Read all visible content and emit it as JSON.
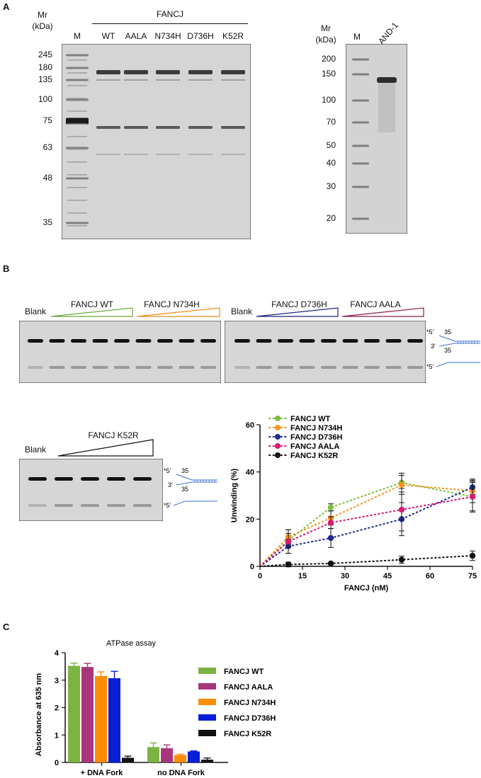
{
  "panels": {
    "a": "A",
    "b": "B",
    "c": "C"
  },
  "gel_a1": {
    "mr": "Mr",
    "kda": "(kDa)",
    "group_label": "FANCJ",
    "lanes": [
      "M",
      "WT",
      "AALA",
      "N734H",
      "D736H",
      "K52R"
    ],
    "markers": [
      "245",
      "180",
      "135",
      "100",
      "75",
      "63",
      "48",
      "35"
    ]
  },
  "gel_a2": {
    "mr": "Mr",
    "kda": "(kDa)",
    "lanes": [
      "M",
      "AND-1"
    ],
    "markers": [
      "200",
      "150",
      "100",
      "70",
      "50",
      "40",
      "30",
      "20"
    ]
  },
  "gel_b": {
    "blank": "Blank",
    "gel1_labels": [
      "FANCJ WT",
      "FANCJ N734H"
    ],
    "gel2_labels": [
      "FANCJ D736H",
      "FANCJ AALA"
    ],
    "gel3_label": "FANCJ K52R",
    "substrate": {
      "five": "*5'",
      "three": "3'",
      "n1": "35",
      "n2": "35"
    },
    "colors": {
      "wt": "#6aa83a",
      "n734h": "#f28a1c",
      "d736h": "#1a237e",
      "aala": "#8b1a4a",
      "k52r": "#111111"
    }
  },
  "chart_data": [
    {
      "type": "line",
      "xlabel": "FANCJ (nM)",
      "ylabel": "Unwinding (%)",
      "xlim": [
        0,
        75
      ],
      "ylim": [
        0,
        60
      ],
      "xticks": [
        "0",
        "15",
        "30",
        "45",
        "60",
        "75"
      ],
      "yticks": [
        "0",
        "20",
        "40",
        "60"
      ],
      "grid": false,
      "legend": "top-left",
      "x": [
        0,
        10,
        25,
        50,
        75
      ],
      "series": [
        {
          "name": "FANCJ WT",
          "color": "#7cbf3c",
          "values": [
            0,
            11,
            25,
            35.5,
            29.5
          ],
          "err": [
            0,
            3,
            1.5,
            4,
            6.5
          ]
        },
        {
          "name": "FANCJ N734H",
          "color": "#f7941d",
          "values": [
            0,
            12.5,
            20.5,
            34.5,
            32
          ],
          "err": [
            0,
            3,
            3,
            4,
            5
          ]
        },
        {
          "name": "FANCJ D736H",
          "color": "#1f2a8c",
          "values": [
            0,
            8.5,
            12,
            20,
            33.5
          ],
          "err": [
            0,
            3,
            4,
            7,
            3
          ]
        },
        {
          "name": "FANCJ AALA",
          "color": "#d81b72",
          "values": [
            0,
            10.5,
            18.5,
            24,
            29.5
          ],
          "err": [
            0,
            5,
            2.5,
            9,
            6
          ]
        },
        {
          "name": "FANCJ K52R",
          "color": "#111111",
          "values": [
            0,
            0.8,
            1.2,
            2.8,
            4.5
          ],
          "err": [
            0,
            1,
            0.5,
            1.5,
            2
          ]
        }
      ]
    },
    {
      "type": "bar",
      "title": "ATPase assay",
      "ylabel": "Absorbance at 635 nm",
      "ylim": [
        0,
        4
      ],
      "yticks": [
        "0",
        "1",
        "2",
        "3",
        "4"
      ],
      "categories": [
        "+ DNA Fork",
        "no DNA Fork"
      ],
      "legend": "right",
      "series": [
        {
          "name": "FANCJ WT",
          "color": "#7cb342",
          "values": [
            3.52,
            0.56
          ],
          "err": [
            0.1,
            0.15
          ]
        },
        {
          "name": "FANCJ AALA",
          "color": "#a8367c",
          "values": [
            3.48,
            0.52
          ],
          "err": [
            0.13,
            0.12
          ]
        },
        {
          "name": "FANCJ N734H",
          "color": "#ff8c00",
          "values": [
            3.15,
            0.27
          ],
          "err": [
            0.15,
            0.03
          ]
        },
        {
          "name": "FANCJ D736H",
          "color": "#0a1ed8",
          "values": [
            3.07,
            0.4
          ],
          "err": [
            0.25,
            0.02
          ]
        },
        {
          "name": "FANCJ K52R",
          "color": "#111111",
          "values": [
            0.17,
            0.1
          ],
          "err": [
            0.06,
            0.06
          ]
        }
      ]
    }
  ]
}
